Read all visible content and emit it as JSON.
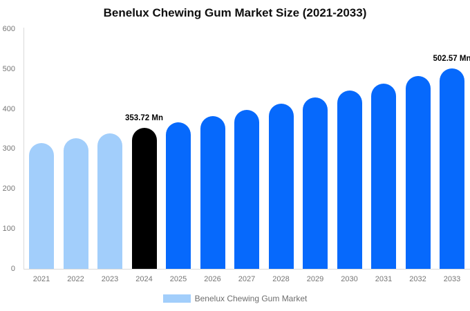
{
  "chart_data": {
    "type": "bar",
    "title": "Benelux Chewing Gum Market Size (2021-2033)",
    "unit": "Mn",
    "categories": [
      "2021",
      "2022",
      "2023",
      "2024",
      "2025",
      "2026",
      "2027",
      "2028",
      "2029",
      "2030",
      "2031",
      "2032",
      "2033"
    ],
    "values": [
      314.6,
      327.1,
      340.2,
      353.72,
      367.8,
      382.4,
      397.6,
      413.5,
      429.9,
      447.0,
      464.8,
      483.3,
      502.57
    ],
    "bar_colors": [
      "#A2CEFB",
      "#A2CEFB",
      "#A2CEFB",
      "#000000",
      "#0669FC",
      "#0669FC",
      "#0669FC",
      "#0669FC",
      "#0669FC",
      "#0669FC",
      "#0669FC",
      "#0669FC",
      "#0669FC"
    ],
    "data_labels": [
      {
        "category": "2024",
        "text": "353.72 Mn"
      },
      {
        "category": "2033",
        "text": "502.57 Mn"
      }
    ],
    "y_ticks": [
      0,
      100,
      200,
      300,
      400,
      500,
      600
    ],
    "ylim": [
      0,
      600
    ],
    "grid": false,
    "xlabel": "",
    "ylabel": "",
    "legend": {
      "position": "bottom",
      "items": [
        {
          "label": "Benelux Chewing Gum Market",
          "color": "#A2CEFB"
        }
      ]
    },
    "colors": {
      "historical_bar": "#A2CEFB",
      "highlight_bar": "#000000",
      "forecast_bar": "#0669FC",
      "axis_text": "#757575",
      "axis_line": "#DADADA",
      "data_label": "#000000"
    }
  }
}
